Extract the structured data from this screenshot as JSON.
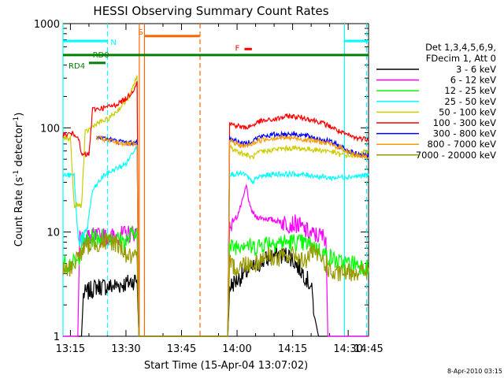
{
  "chart_data": {
    "type": "line",
    "title": "HESSI Observing Summary Count Rates",
    "xlabel": "Start Time (15-Apr-04 13:07:02)",
    "ylabel_main": "Count Rate (s",
    "ylabel_sup1": "-1",
    "ylabel_mid": " detector",
    "ylabel_sup2": "-1",
    "ylabel_end": ")",
    "yscale": "log",
    "ylim": [
      1,
      1000
    ],
    "xlim_minutes": [
      13.0,
      95.5
    ],
    "x_ticks": [
      {
        "m": 15,
        "label": "13:15"
      },
      {
        "m": 30,
        "label": "13:30"
      },
      {
        "m": 45,
        "label": "13:45"
      },
      {
        "m": 60,
        "label": "14:00"
      },
      {
        "m": 75,
        "label": "14:15"
      },
      {
        "m": 90,
        "label": "14:30"
      },
      {
        "m": 105,
        "label": "14:45"
      }
    ],
    "y_ticks": [
      {
        "v": 1,
        "label": "1"
      },
      {
        "v": 10,
        "label": "10"
      },
      {
        "v": 100,
        "label": "100"
      },
      {
        "v": 1000,
        "label": "1000"
      }
    ],
    "legend_header": [
      "Det 1,3,4,5,6,9,",
      "FDecim 1, Att 0"
    ],
    "series": [
      {
        "name": "3 - 6 keV",
        "color": "#000000",
        "values": [
          [
            13.0,
            1.0
          ],
          [
            18.0,
            1.0
          ],
          [
            18.5,
            2.5
          ],
          [
            22,
            3.0
          ],
          [
            26,
            3.0
          ],
          [
            30,
            3.2
          ],
          [
            33,
            3.5
          ],
          [
            33.5,
            1.0
          ],
          [
            57.5,
            1.0
          ],
          [
            58,
            3
          ],
          [
            62,
            4
          ],
          [
            66,
            5
          ],
          [
            70,
            6
          ],
          [
            74,
            6
          ],
          [
            78,
            4
          ],
          [
            80,
            3
          ],
          [
            81,
            1.5
          ],
          [
            82,
            1.0
          ],
          [
            95.5,
            1.0
          ]
        ]
      },
      {
        "name": "6 - 12 keV",
        "color": "#ff00ff",
        "values": [
          [
            13.0,
            1.0
          ],
          [
            17.0,
            1.0
          ],
          [
            17.5,
            9
          ],
          [
            22,
            9
          ],
          [
            26,
            9
          ],
          [
            30,
            9.5
          ],
          [
            33,
            10
          ],
          [
            33.5,
            1.0
          ],
          [
            57.5,
            1.0
          ],
          [
            58,
            12
          ],
          [
            60,
            14
          ],
          [
            61.5,
            20
          ],
          [
            62.5,
            28
          ],
          [
            63.5,
            17
          ],
          [
            65,
            14
          ],
          [
            70,
            13
          ],
          [
            74,
            12
          ],
          [
            76,
            12
          ],
          [
            80,
            9.5
          ],
          [
            84,
            9
          ],
          [
            84.5,
            1.0
          ],
          [
            95.5,
            1.0
          ]
        ]
      },
      {
        "name": "12 - 25 keV",
        "color": "#00ff00",
        "values": [
          [
            13.0,
            5.0
          ],
          [
            17,
            5
          ],
          [
            18,
            8
          ],
          [
            22,
            9
          ],
          [
            26,
            9
          ],
          [
            30,
            8
          ],
          [
            33,
            11
          ],
          [
            33.5,
            1.0
          ],
          [
            57.5,
            1.0
          ],
          [
            58,
            7
          ],
          [
            62,
            8
          ],
          [
            64,
            7
          ],
          [
            68,
            8
          ],
          [
            72,
            8
          ],
          [
            76,
            8
          ],
          [
            80,
            7.5
          ],
          [
            84,
            6
          ],
          [
            88,
            5
          ],
          [
            92,
            5
          ],
          [
            95.5,
            4.5
          ]
        ]
      },
      {
        "name": "25 - 50 keV",
        "color": "#00ffff",
        "values": [
          [
            13.0,
            35
          ],
          [
            16,
            35
          ],
          [
            17,
            9
          ],
          [
            19,
            8.5
          ],
          [
            21,
            25
          ],
          [
            24,
            35
          ],
          [
            27,
            40
          ],
          [
            30,
            45
          ],
          [
            32,
            60
          ],
          [
            33,
            68
          ],
          [
            33.5,
            1.0
          ],
          [
            57.5,
            1.0
          ],
          [
            58,
            36
          ],
          [
            62,
            36
          ],
          [
            63,
            33
          ],
          [
            64,
            30
          ],
          [
            66,
            34
          ],
          [
            70,
            36
          ],
          [
            75,
            36
          ],
          [
            80,
            35
          ],
          [
            85,
            33
          ],
          [
            90,
            34
          ],
          [
            95.5,
            35
          ]
        ]
      },
      {
        "name": "50 - 100 keV",
        "color": "#cccc00",
        "values": [
          [
            13.0,
            80
          ],
          [
            15,
            80
          ],
          [
            16,
            18
          ],
          [
            18,
            18
          ],
          [
            19,
            90
          ],
          [
            22,
            110
          ],
          [
            25,
            120
          ],
          [
            28,
            150
          ],
          [
            31,
            200
          ],
          [
            33,
            320
          ],
          [
            33.5,
            1.0
          ],
          [
            57.5,
            1.0
          ],
          [
            58,
            65
          ],
          [
            60,
            60
          ],
          [
            62,
            56
          ],
          [
            64,
            52
          ],
          [
            66,
            58
          ],
          [
            70,
            62
          ],
          [
            75,
            64
          ],
          [
            80,
            62
          ],
          [
            85,
            60
          ],
          [
            88,
            55
          ],
          [
            92,
            54
          ],
          [
            95.5,
            60
          ]
        ]
      },
      {
        "name": "100 - 300 keV",
        "color": "#ff0000",
        "values": [
          [
            13.0,
            85
          ],
          [
            15,
            88
          ],
          [
            17,
            85
          ],
          [
            18,
            55
          ],
          [
            20,
            55
          ],
          [
            21,
            150
          ],
          [
            24,
            155
          ],
          [
            27,
            165
          ],
          [
            30,
            190
          ],
          [
            32,
            230
          ],
          [
            33,
            280
          ],
          [
            33.5,
            1.0
          ],
          [
            57.5,
            1.0
          ],
          [
            58,
            110
          ],
          [
            60,
            105
          ],
          [
            62,
            100
          ],
          [
            64,
            105
          ],
          [
            66,
            115
          ],
          [
            70,
            120
          ],
          [
            74,
            130
          ],
          [
            78,
            125
          ],
          [
            82,
            115
          ],
          [
            86,
            100
          ],
          [
            88,
            90
          ],
          [
            92,
            80
          ],
          [
            95.5,
            78
          ]
        ]
      },
      {
        "name": "300 - 800 keV",
        "color": "#0000ff",
        "values": [
          [
            22,
            82
          ],
          [
            25,
            78
          ],
          [
            28,
            74
          ],
          [
            31,
            72
          ],
          [
            33,
            72
          ],
          [
            33.5,
            1.0
          ],
          [
            57.5,
            1.0
          ],
          [
            58,
            80
          ],
          [
            60,
            74
          ],
          [
            62,
            70
          ],
          [
            64,
            75
          ],
          [
            66,
            82
          ],
          [
            70,
            86
          ],
          [
            75,
            88
          ],
          [
            80,
            82
          ],
          [
            85,
            74
          ],
          [
            88,
            66
          ],
          [
            92,
            56
          ],
          [
            95.5,
            54
          ]
        ]
      },
      {
        "name": "800 - 7000 keV",
        "color": "#ff9900",
        "values": [
          [
            22,
            80
          ],
          [
            25,
            76
          ],
          [
            28,
            72
          ],
          [
            31,
            70
          ],
          [
            33,
            68
          ],
          [
            33.5,
            1.0
          ],
          [
            57.5,
            1.0
          ],
          [
            58,
            75
          ],
          [
            60,
            70
          ],
          [
            62,
            66
          ],
          [
            64,
            70
          ],
          [
            66,
            76
          ],
          [
            70,
            80
          ],
          [
            75,
            80
          ],
          [
            80,
            76
          ],
          [
            85,
            70
          ],
          [
            88,
            64
          ],
          [
            92,
            55
          ],
          [
            95.5,
            52
          ]
        ]
      },
      {
        "name": "7000 - 20000 keV",
        "color": "#999900",
        "values": [
          [
            13.0,
            4.2
          ],
          [
            15,
            4.5
          ],
          [
            18,
            6.5
          ],
          [
            20,
            7.5
          ],
          [
            24,
            8
          ],
          [
            27,
            8
          ],
          [
            29,
            7
          ],
          [
            30,
            6
          ],
          [
            33,
            5.5
          ],
          [
            33.5,
            1.0
          ],
          [
            57.5,
            1.0
          ],
          [
            58,
            5
          ],
          [
            60,
            4.5
          ],
          [
            62,
            5
          ],
          [
            65,
            5
          ],
          [
            68,
            6
          ],
          [
            71,
            5.5
          ],
          [
            74,
            6
          ],
          [
            76,
            6
          ],
          [
            78,
            5
          ],
          [
            80,
            6.5
          ],
          [
            83,
            5.5
          ],
          [
            86,
            3.8
          ],
          [
            88,
            4
          ],
          [
            92,
            4.2
          ],
          [
            95.5,
            4.2
          ]
        ]
      }
    ],
    "flags": [
      {
        "label": "N",
        "color": "#00ffff",
        "segments": [
          [
            13.0,
            25.0
          ],
          [
            89.0,
            95.5
          ]
        ],
        "level": 680
      },
      {
        "label": "RD0",
        "color": "#008000",
        "segments": [
          [
            13.0,
            95.5
          ]
        ],
        "level": 500
      },
      {
        "label": "RD4",
        "color": "#008000",
        "segments": [
          [
            20.0,
            24.5
          ]
        ],
        "level": 420
      },
      {
        "label": "S",
        "color": "#ff6600",
        "segments": [
          [
            35.0,
            50.0
          ]
        ],
        "level": 760
      },
      {
        "label": "F",
        "color": "#ff0000",
        "segments": [
          [
            62.0,
            64.0
          ]
        ],
        "level": 570
      }
    ],
    "vlines": [
      {
        "m": 13.0,
        "color": "#00ffff",
        "dash": false
      },
      {
        "m": 25.0,
        "color": "#00ffff",
        "dash": true
      },
      {
        "m": 33.6,
        "color": "#ff6600",
        "dash": false
      },
      {
        "m": 35.0,
        "color": "#ff6600",
        "dash": false
      },
      {
        "m": 50.0,
        "color": "#ff6600",
        "dash": true
      },
      {
        "m": 89.0,
        "color": "#00ffff",
        "dash": false
      },
      {
        "m": 95.0,
        "color": "#00ffff",
        "dash": true
      }
    ]
  },
  "footer_date": "8-Apr-2010 03:15"
}
